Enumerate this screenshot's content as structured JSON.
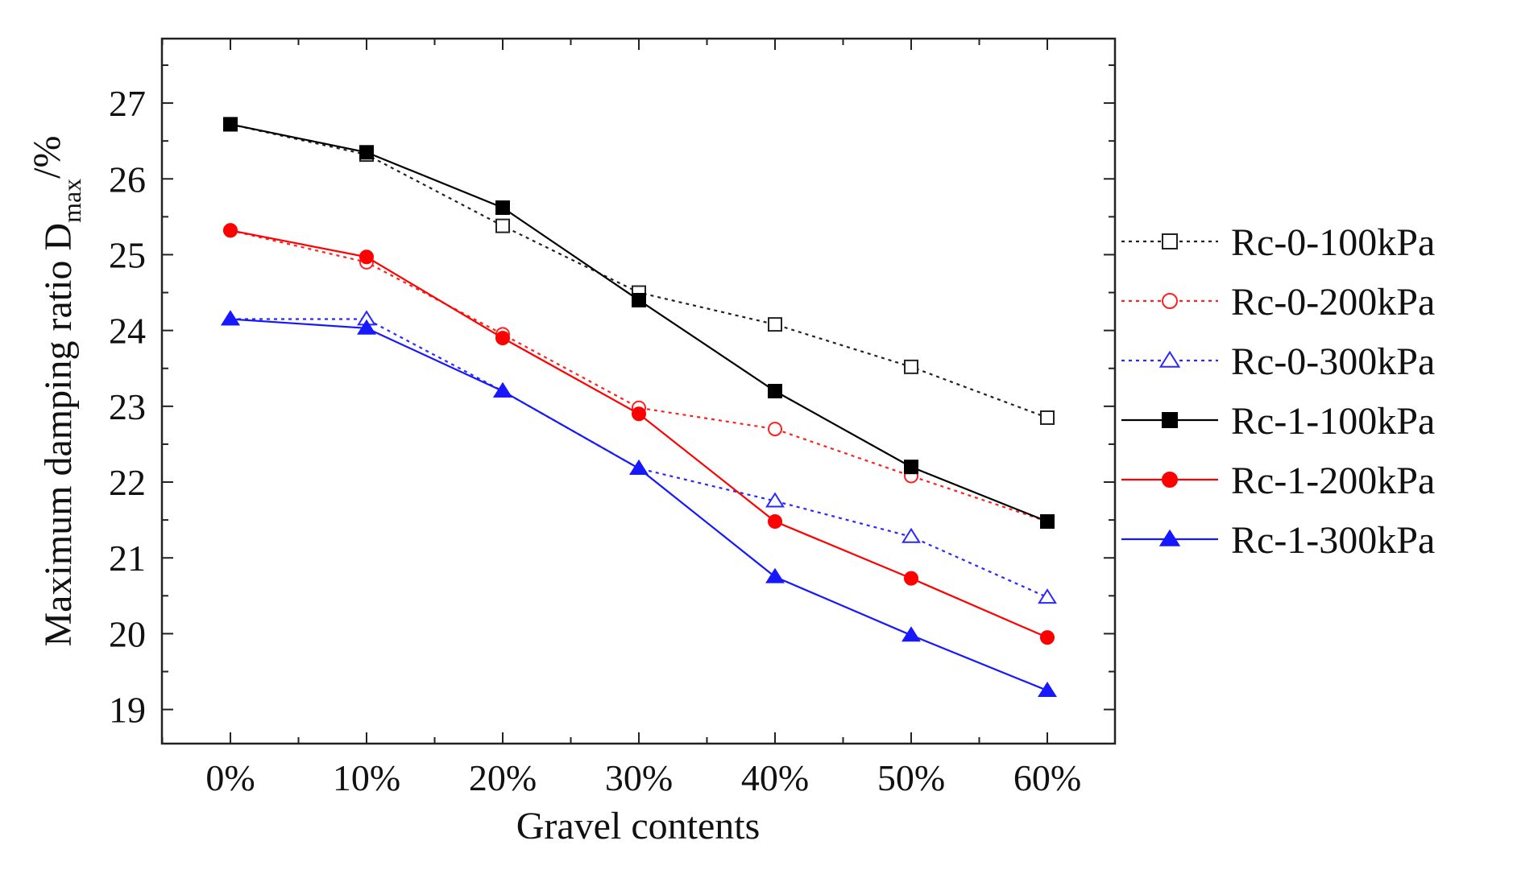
{
  "chart_data": {
    "type": "line",
    "title": "",
    "xlabel": "Gravel contents",
    "ylabel": {
      "prefix": "Maximum damping ratio D",
      "subscript": "max",
      "suffix": "/%"
    },
    "categories": [
      "0%",
      "10%",
      "20%",
      "30%",
      "40%",
      "50%",
      "60%"
    ],
    "ylim": [
      18.55,
      27.85
    ],
    "yticks": [
      19,
      20,
      21,
      22,
      23,
      24,
      25,
      26,
      27
    ],
    "grid": false,
    "legend_position": "right",
    "series": [
      {
        "name": "Rc-0-100kPa",
        "color": "#222222",
        "line": "dotted",
        "marker": "square-open",
        "values": [
          26.72,
          26.32,
          25.38,
          24.5,
          24.08,
          23.52,
          22.85
        ]
      },
      {
        "name": "Rc-0-200kPa",
        "color": "#ff2020",
        "line": "dotted",
        "marker": "circle-open",
        "values": [
          25.32,
          24.9,
          23.95,
          22.98,
          22.7,
          22.08,
          21.48
        ]
      },
      {
        "name": "Rc-0-300kPa",
        "color": "#2828ff",
        "line": "dotted",
        "marker": "triangle-open",
        "values": [
          24.15,
          24.15,
          23.2,
          22.18,
          21.75,
          21.28,
          20.48
        ]
      },
      {
        "name": "Rc-1-100kPa",
        "color": "#000000",
        "line": "solid",
        "marker": "square-filled",
        "values": [
          26.72,
          26.35,
          25.62,
          24.4,
          23.2,
          22.2,
          21.48
        ]
      },
      {
        "name": "Rc-1-200kPa",
        "color": "#ff0000",
        "line": "solid",
        "marker": "circle-filled",
        "values": [
          25.32,
          24.97,
          23.9,
          22.9,
          21.48,
          20.73,
          19.95
        ]
      },
      {
        "name": "Rc-1-300kPa",
        "color": "#1818ff",
        "line": "solid",
        "marker": "triangle-filled",
        "values": [
          24.15,
          24.03,
          23.2,
          22.18,
          20.75,
          19.98,
          19.25
        ]
      }
    ]
  }
}
